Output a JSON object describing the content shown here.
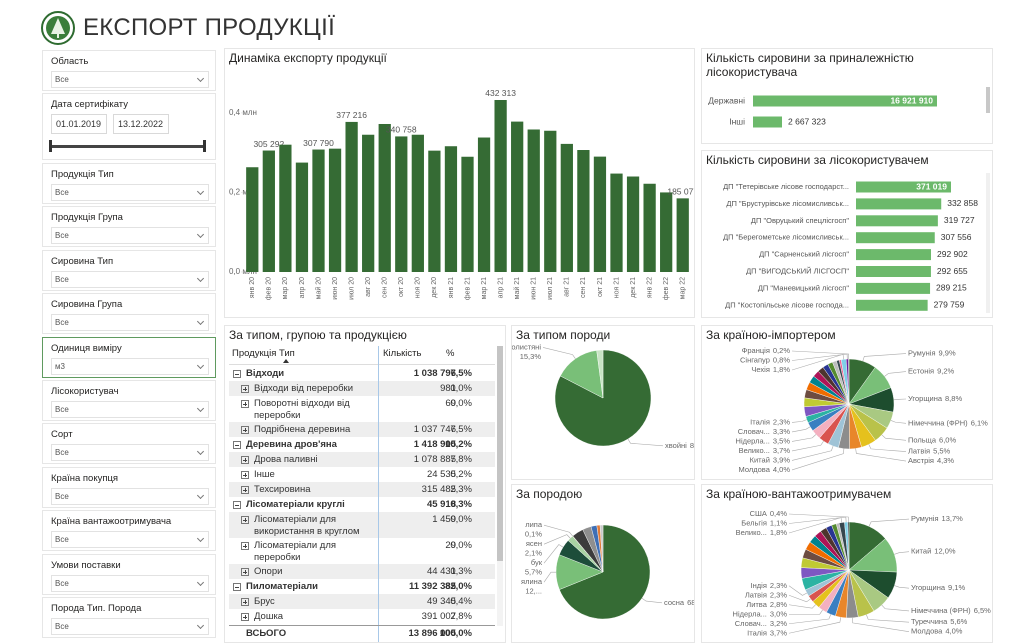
{
  "header": {
    "title": "ЕКСПОРТ ПРОДУКЦІЇ"
  },
  "filters": [
    {
      "label": "Область",
      "value": "Все"
    },
    {
      "label": "Дата сертифікату",
      "from": "01.01.2019",
      "to": "13.12.2022"
    },
    {
      "label": "Продукція Тип",
      "value": "Все"
    },
    {
      "label": "Продукція Група",
      "value": "Все"
    },
    {
      "label": "Сировина Тип",
      "value": "Все"
    },
    {
      "label": "Сировина Група",
      "value": "Все"
    },
    {
      "label": "Одиниця виміру",
      "value": "м3"
    },
    {
      "label": "Лісокористувач",
      "value": "Все"
    },
    {
      "label": "Сорт",
      "value": "Все"
    },
    {
      "label": "Країна покупця",
      "value": "Все"
    },
    {
      "label": "Країна вантажоотримувача",
      "value": "Все"
    },
    {
      "label": "Умови поставки",
      "value": "Все"
    },
    {
      "label": "Порода Тип. Порода",
      "value": "Все"
    }
  ],
  "chart_data": [
    {
      "type": "column",
      "title": "Динаміка експорту продукції",
      "color": "#356b34",
      "grid": false,
      "categories": [
        "янв 20",
        "фев 20",
        "мар 20",
        "апр 20",
        "май 20",
        "июн 20",
        "июл 20",
        "авг 20",
        "сен 20",
        "окт 20",
        "ноя 20",
        "дек 20",
        "янв 21",
        "фев 21",
        "мар 21",
        "апр 21",
        "май 21",
        "июн 21",
        "июл 21",
        "авг 21",
        "сен 21",
        "окт 21",
        "ноя 21",
        "дек 21",
        "янв 22",
        "фев 22",
        "мар 22"
      ],
      "values": [
        263300,
        305292,
        320000,
        275000,
        307790,
        310000,
        377216,
        345000,
        372000,
        340758,
        345000,
        305000,
        316100,
        289670,
        338000,
        432313,
        378000,
        358171,
        355000,
        322000,
        306601,
        290000,
        247374,
        240000,
        221805,
        200000,
        185077
      ],
      "value_labels": [
        null,
        "305 292",
        null,
        null,
        "307 790",
        null,
        "377 216",
        null,
        null,
        "340 758",
        null,
        null,
        null,
        null,
        null,
        "432 313",
        null,
        null,
        null,
        null,
        null,
        null,
        null,
        null,
        null,
        null,
        "185 077"
      ],
      "ylim": [
        0,
        470000
      ],
      "yticks": [
        {
          "value": 0,
          "label": "0,0 млн"
        },
        {
          "value": 200000,
          "label": "0,2 млн"
        },
        {
          "value": 400000,
          "label": "0,4 млн"
        }
      ]
    },
    {
      "type": "hbar",
      "title": "Кількість сировини за приналежністю лісокористувача",
      "color": "#6cb96b",
      "categories": [
        "Державні",
        "Інші"
      ],
      "values": [
        16921910,
        2667323
      ],
      "value_labels": [
        "16 921 910",
        "2 667 323"
      ]
    },
    {
      "type": "hbar",
      "title": "Кількість сировини за лісокористувачем",
      "color": "#6cb96b",
      "categories": [
        "ДП \"Тетерівське лісове господарст...",
        "ДП \"Брустурівське лісомисливськ...",
        "ДП \"Овруцький спецлісгосп\"",
        "ДП \"Берегометське лісомисливськ...",
        "ДП \"Сарненський лісгосп\"",
        "ДП \"ВИГОДСЬКИЙ ЛІСГОСП\"",
        "ДП \"Маневицький лісгосп\"",
        "ДП \"Костопільське лісове господа..."
      ],
      "values": [
        371019,
        332858,
        319727,
        307556,
        292902,
        292655,
        289215,
        279759
      ],
      "value_labels": [
        "371 019",
        "332 858",
        "319 727",
        "307 556",
        "292 902",
        "292 655",
        "289 215",
        "279 759"
      ]
    },
    {
      "type": "pie",
      "title": "За типом породи",
      "categories": [
        "хвойні",
        "твердолистяні",
        null
      ],
      "values": [
        82.6,
        15.3,
        2.1
      ],
      "value_labels": [
        "82,6%",
        "15,3%",
        null
      ],
      "colors": [
        "#356b34",
        "#79bf78",
        "#c8e4c4"
      ]
    },
    {
      "type": "pie",
      "title": "За породою",
      "categories": [
        "сосна",
        "ялина",
        "бук",
        "ясен",
        "липа",
        null,
        null,
        null,
        null,
        null
      ],
      "values": [
        68.9,
        12.1,
        5.7,
        2.1,
        0.1,
        4.0,
        3.0,
        2.0,
        1.1,
        1.0
      ],
      "value_labels": [
        "68,9%",
        "12,...",
        "5,7%",
        "2,1%",
        "0,1%",
        null,
        null,
        null,
        null,
        null
      ],
      "colors": [
        "#356b34",
        "#79bf78",
        "#1d4d3a",
        "#a9d3a3",
        "#e2c21b",
        "#3c3c3c",
        "#8f8f8f",
        "#3f6fb5",
        "#e07b39",
        "#c9c9c9"
      ]
    },
    {
      "type": "pie",
      "title": "За країною-імпортером",
      "categories": [
        "Румунія",
        "Естонія",
        "Угорщина",
        "Німеччина (ФРН)",
        "Польща",
        "Латвія",
        "Австрія",
        "Молдова",
        "Китай",
        "Велико...",
        "Нідерла...",
        "Словач...",
        "Італія",
        null,
        null,
        null,
        null,
        null,
        null,
        null,
        null,
        null,
        null,
        null,
        null,
        "Чехія",
        "Сінгапур",
        "Франція"
      ],
      "values": [
        9.9,
        9.2,
        8.8,
        6.1,
        6.0,
        5.5,
        4.3,
        4.0,
        3.9,
        3.7,
        3.5,
        3.3,
        2.3,
        3.5,
        3.2,
        3.0,
        2.8,
        2.6,
        2.4,
        2.2,
        2.0,
        1.8,
        1.5,
        1.0,
        0.7,
        1.8,
        0.8,
        0.2
      ],
      "value_labels": [
        "9,9%",
        "9,2%",
        "8,8%",
        "6,1%",
        "6,0%",
        "5,5%",
        "4,3%",
        "4,0%",
        "3,9%",
        "3,7%",
        "3,5%",
        "3,3%",
        "2,3%",
        null,
        null,
        null,
        null,
        null,
        null,
        null,
        null,
        null,
        null,
        null,
        null,
        "1,8%",
        "0,8%",
        "0,2%"
      ],
      "colors": [
        "#356b34",
        "#79bf78",
        "#1d4d2e",
        "#a9c982",
        "#b9c24a",
        "#e5c11d",
        "#e8862a",
        "#8c8c8c",
        "#9fc3d6",
        "#d9534f",
        "#f4b0c0",
        "#3a7fc1",
        "#2bb3a3",
        "#7e57c2",
        "#c0ca33",
        "#6d4c41",
        "#ef6c00",
        "#00838f",
        "#ad1457",
        "#4e342e",
        "#283593",
        "#558b2f",
        "#bdbdbd",
        "#37474f",
        "#f06292",
        "#7fd0e8",
        "#6a1b9a",
        "#263238"
      ]
    },
    {
      "type": "pie",
      "title": "За країною-вантажоотримувачем",
      "categories": [
        "Румунія",
        "Китай",
        "Угорщина",
        "Німеччина (ФРН)",
        "Туреччина",
        "Молдова",
        "Італія",
        "Словач...",
        "Нідерла...",
        "Литва",
        "Латвія",
        "Індія",
        null,
        null,
        null,
        null,
        null,
        null,
        null,
        null,
        null,
        null,
        null,
        "Велико...",
        "Бельгія",
        "США"
      ],
      "values": [
        13.7,
        12.0,
        9.1,
        6.5,
        5.6,
        4.0,
        3.7,
        3.2,
        3.0,
        2.8,
        2.3,
        2.3,
        4.0,
        3.6,
        3.3,
        3.0,
        2.8,
        2.6,
        2.4,
        2.2,
        2.0,
        1.6,
        1.0,
        1.8,
        1.1,
        0.4
      ],
      "value_labels": [
        "13,7%",
        "12,0%",
        "9,1%",
        "6,5%",
        "5,6%",
        "4,0%",
        "3,7%",
        "3,2%",
        "3,0%",
        "2,8%",
        "2,3%",
        "2,3%",
        null,
        null,
        null,
        null,
        null,
        null,
        null,
        null,
        null,
        null,
        null,
        "1,8%",
        "1,1%",
        "0,4%"
      ],
      "colors": [
        "#356b34",
        "#79bf78",
        "#1d4d2e",
        "#a9c982",
        "#b9c24a",
        "#8c8c8c",
        "#e8862a",
        "#3a7fc1",
        "#f4b0c0",
        "#e5c11d",
        "#d9534f",
        "#9fc3d6",
        "#2bb3a3",
        "#7e57c2",
        "#c0ca33",
        "#6d4c41",
        "#ef6c00",
        "#00838f",
        "#ad1457",
        "#4e342e",
        "#283593",
        "#558b2f",
        "#bdbdbd",
        "#37474f",
        "#7fd0e8",
        "#263238"
      ]
    }
  ],
  "table": {
    "title": "За типом, групою та продукцією",
    "columns": [
      "Продукція Тип",
      "Кількість",
      "%"
    ],
    "groups": [
      {
        "name": "Відходи",
        "qty": "1 038 796",
        "pct": "7,5%",
        "children": [
          [
            "Відходи від переробки",
            "981",
            "0,0%"
          ],
          [
            "Поворотні відходи від переробки",
            "69",
            "0,0%"
          ],
          [
            "Подрібнена деревина",
            "1 037 746",
            "7,5%"
          ]
        ]
      },
      {
        "name": "Деревина дров'яна",
        "qty": "1 418 905",
        "pct": "10,2%",
        "children": [
          [
            "Дрова паливні",
            "1 078 885",
            "7,8%"
          ],
          [
            "Інше",
            "24 535",
            "0,2%"
          ],
          [
            "Техсировина",
            "315 485",
            "2,3%"
          ]
        ]
      },
      {
        "name": "Лісоматеріали круглі",
        "qty": "45 918",
        "pct": "0,3%",
        "children": [
          [
            "Лісоматеріали для використання в круглом",
            "1 459",
            "0,0%"
          ],
          [
            "Лісоматеріали для переробки",
            "29",
            "0,0%"
          ],
          [
            "Опори",
            "44 431",
            "0,3%"
          ]
        ]
      },
      {
        "name": "Пиломатеріали",
        "qty": "11 392 385",
        "pct": "82,0%",
        "children": [
          [
            "Брус",
            "49 345",
            "0,4%"
          ],
          [
            "Дошка",
            "391 007",
            "2,8%"
          ]
        ]
      }
    ],
    "total": [
      "ВСЬОГО",
      "13 896 005",
      "100,0%"
    ]
  }
}
